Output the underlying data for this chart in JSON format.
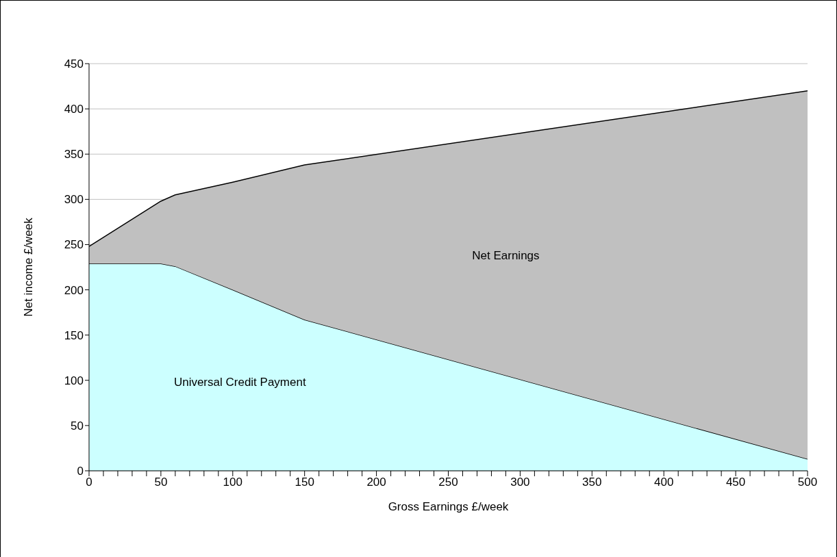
{
  "chart_data": {
    "type": "area",
    "stacked": true,
    "xlabel": "Gross Earnings £/week",
    "ylabel": "Net income £/week",
    "x": [
      0,
      50,
      60,
      100,
      150,
      500
    ],
    "series": [
      {
        "name": "Universal Credit Payment",
        "color": "#ccffff",
        "values": [
          229,
          229,
          226,
          200,
          167,
          13
        ]
      },
      {
        "name": "Net Earnings",
        "color": "#c0c0c0",
        "values": [
          19,
          69,
          79,
          119,
          171,
          407
        ]
      }
    ],
    "xlim": [
      0,
      500
    ],
    "xticks": [
      0,
      {
        "value": 10,
        "label": null
      },
      {
        "value": 20,
        "label": null
      },
      {
        "value": 30,
        "label": null
      },
      {
        "value": 40,
        "label": null
      },
      50,
      {
        "value": 60,
        "label": null
      },
      {
        "value": 70,
        "label": null
      },
      {
        "value": 80,
        "label": null
      },
      {
        "value": 90,
        "label": null
      },
      100,
      {
        "value": 110,
        "label": null
      },
      {
        "value": 120,
        "label": null
      },
      {
        "value": 130,
        "label": null
      },
      {
        "value": 140,
        "label": null
      },
      150,
      {
        "value": 160,
        "label": null
      },
      {
        "value": 170,
        "label": null
      },
      {
        "value": 180,
        "label": null
      },
      {
        "value": 190,
        "label": null
      },
      200,
      {
        "value": 210,
        "label": null
      },
      {
        "value": 220,
        "label": null
      },
      {
        "value": 230,
        "label": null
      },
      {
        "value": 240,
        "label": null
      },
      250,
      {
        "value": 260,
        "label": null
      },
      {
        "value": 270,
        "label": null
      },
      {
        "value": 280,
        "label": null
      },
      {
        "value": 290,
        "label": null
      },
      300,
      {
        "value": 310,
        "label": null
      },
      {
        "value": 320,
        "label": null
      },
      {
        "value": 330,
        "label": null
      },
      {
        "value": 340,
        "label": null
      },
      350,
      {
        "value": 360,
        "label": null
      },
      {
        "value": 370,
        "label": null
      },
      {
        "value": 380,
        "label": null
      },
      {
        "value": 390,
        "label": null
      },
      400,
      {
        "value": 410,
        "label": null
      },
      {
        "value": 420,
        "label": null
      },
      {
        "value": 430,
        "label": null
      },
      {
        "value": 440,
        "label": null
      },
      450,
      {
        "value": 460,
        "label": null
      },
      {
        "value": 470,
        "label": null
      },
      {
        "value": 480,
        "label": null
      },
      {
        "value": 490,
        "label": null
      },
      500
    ],
    "ylim": [
      0,
      450
    ],
    "yticks": [
      0,
      50,
      100,
      150,
      200,
      250,
      300,
      350,
      400,
      450
    ],
    "grid": "y",
    "legend": false
  }
}
